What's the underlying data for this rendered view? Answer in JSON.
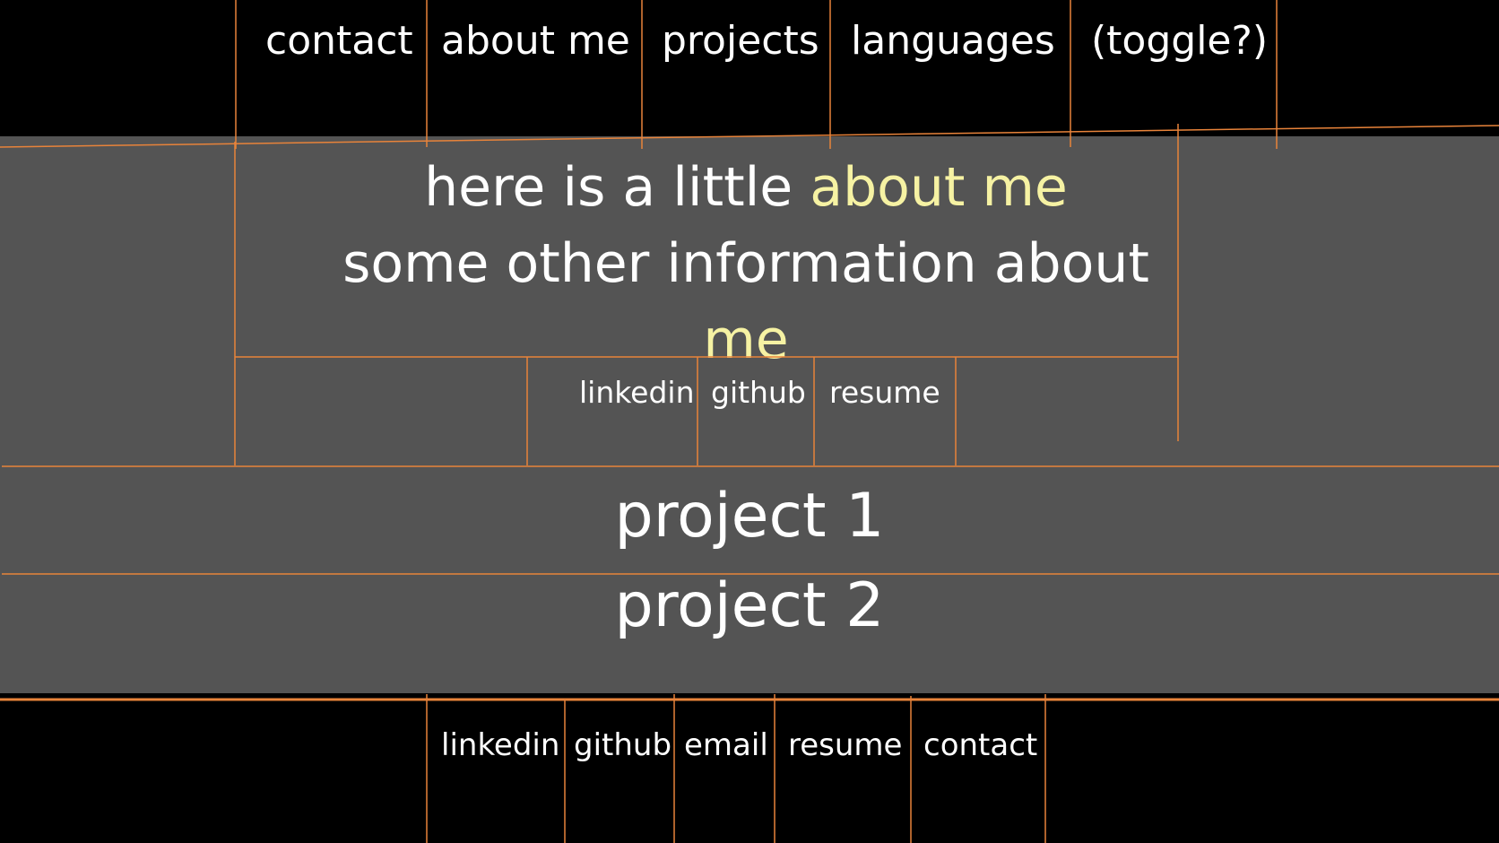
{
  "colors": {
    "background": "#000000",
    "panel": "#545454",
    "text": "#ffffff",
    "accent": "#f6f2a3",
    "guide_lines": "#e8833a"
  },
  "topnav": {
    "items": [
      {
        "label": "contact"
      },
      {
        "label": "about me"
      },
      {
        "label": "projects"
      },
      {
        "label": "languages"
      },
      {
        "label": "(toggle?)"
      }
    ]
  },
  "about": {
    "line1_prefix": "here is a little ",
    "line1_accent": "about me",
    "line2_prefix": "some other information about",
    "line2_accent": "me",
    "links": [
      {
        "label": "linkedin"
      },
      {
        "label": "github"
      },
      {
        "label": "resume"
      }
    ]
  },
  "projects": [
    {
      "title": "project 1"
    },
    {
      "title": "project 2"
    }
  ],
  "footer": {
    "links": [
      {
        "label": "linkedin"
      },
      {
        "label": "github"
      },
      {
        "label": "email"
      },
      {
        "label": "resume"
      },
      {
        "label": "contact"
      }
    ]
  }
}
